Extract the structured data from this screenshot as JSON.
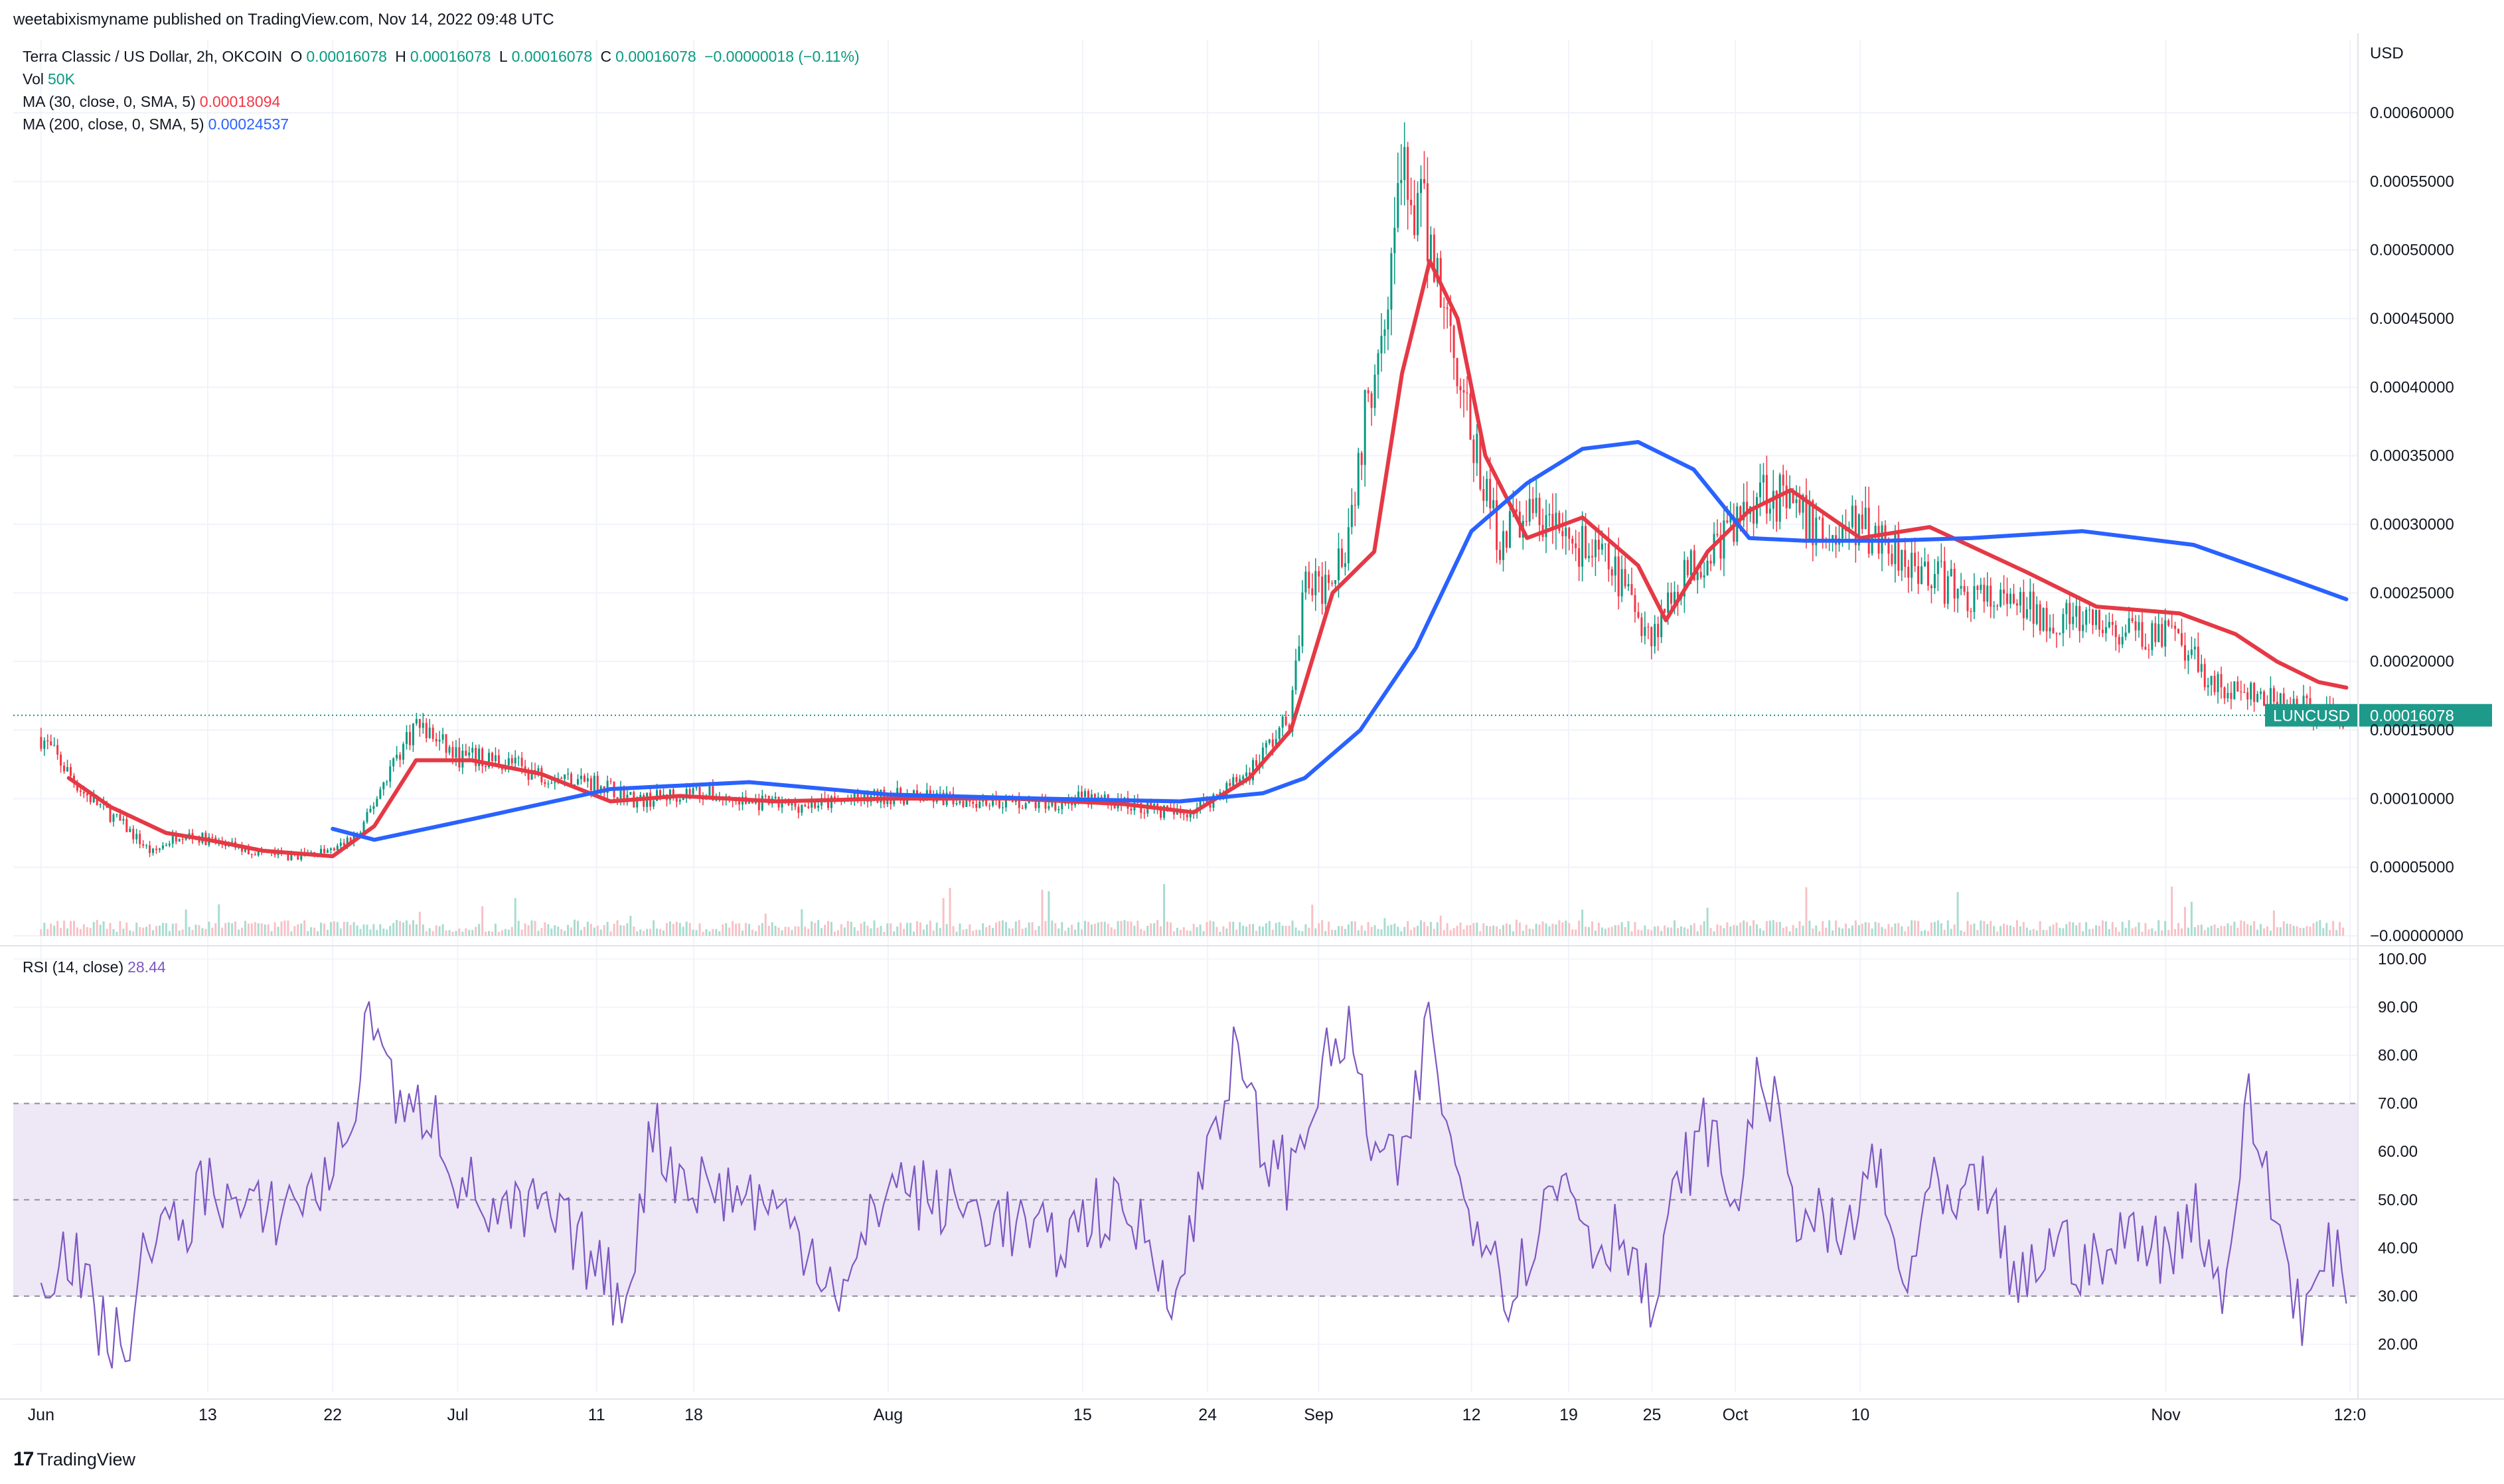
{
  "published": "weetabixismyname published on TradingView.com, Nov 14, 2022 09:48 UTC",
  "legend": {
    "symbol": "Terra Classic / US Dollar, 2h, OKCOIN",
    "o_label": "O",
    "o_value": "0.00016078",
    "h_label": "H",
    "h_value": "0.00016078",
    "l_label": "L",
    "l_value": "0.00016078",
    "c_label": "C",
    "c_value": "0.00016078",
    "change": "−0.00000018 (−0.11%)",
    "vol_label": "Vol",
    "vol_value": "50K",
    "ma30_label": "MA (30, close, 0, SMA, 5)",
    "ma30_value": "0.00018094",
    "ma200_label": "MA (200, close, 0, SMA, 5)",
    "ma200_value": "0.00024537",
    "rsi_label": "RSI (14, close)",
    "rsi_value": "28.44"
  },
  "brand": {
    "logo": "17",
    "name": "TradingView"
  },
  "colors": {
    "up": "#089981",
    "down": "#f23645",
    "ma30": "#e53945",
    "ma200": "#2962ff",
    "rsi": "#7e57c2",
    "rsi_band": "#ede7f6",
    "grid": "#f0f3fa"
  },
  "chart_data": [
    {
      "type": "line",
      "title": "Terra Classic / US Dollar, 2h, OKCOIN",
      "ylabel": "USD",
      "ylim": [
        0,
        0.0006
      ],
      "price_ticks": [
        "−0.00000000",
        "0.00005000",
        "0.00010000",
        "0.00015000",
        "0.00020000",
        "0.00025000",
        "0.00030000",
        "0.00035000",
        "0.00040000",
        "0.00045000",
        "0.00050000",
        "0.00055000",
        "0.00060000"
      ],
      "x_ticks": [
        "Jun",
        "13",
        "22",
        "Jul",
        "11",
        "18",
        "Aug",
        "15",
        "24",
        "Sep",
        "12",
        "19",
        "25",
        "Oct",
        "10",
        "Nov",
        "12:0"
      ],
      "last_price_label": "LUNCUSD",
      "last_price": "0.00016078",
      "series": [
        {
          "name": "Price (close)",
          "x": [
            "Jun 1",
            "Jun 4",
            "Jun 7",
            "Jun 9",
            "Jun 11",
            "Jun 13",
            "Jun 16",
            "Jun 19",
            "Jun 22",
            "Jun 24",
            "Jun 26",
            "Jun 28",
            "Jul 1",
            "Jul 4",
            "Jul 7",
            "Jul 11",
            "Jul 14",
            "Jul 18",
            "Jul 21",
            "Jul 25",
            "Jul 28",
            "Aug 1",
            "Aug 5",
            "Aug 9",
            "Aug 12",
            "Aug 15",
            "Aug 19",
            "Aug 22",
            "Aug 24",
            "Aug 27",
            "Aug 30",
            "Aug 31",
            "Sep 1",
            "Sep 3",
            "Sep 5",
            "Sep 7",
            "Sep 9",
            "Sep 10",
            "Sep 11",
            "Sep 12",
            "Sep 14",
            "Sep 16",
            "Sep 19",
            "Sep 22",
            "Sep 25",
            "Sep 27",
            "Sep 30",
            "Oct 1",
            "Oct 3",
            "Oct 5",
            "Oct 8",
            "Oct 10",
            "Oct 13",
            "Oct 17",
            "Oct 21",
            "Oct 25",
            "Oct 29",
            "Nov 1",
            "Nov 3",
            "Nov 5",
            "Nov 8",
            "Nov 11",
            "Nov 14"
          ],
          "values": [
            0.000145,
            0.000105,
            8e-05,
            6e-05,
            7.5e-05,
            7e-05,
            6.2e-05,
            5.8e-05,
            6.2e-05,
            7.5e-05,
            0.00012,
            0.000155,
            0.00013,
            0.000128,
            0.000118,
            0.000112,
            9.8e-05,
            0.000106,
            9.8e-05,
            9.5e-05,
            9.7e-05,
            0.000102,
            0.0001,
            9.8e-05,
            9.6e-05,
            0.0001,
            9.5e-05,
            8.8e-05,
            9.8e-05,
            0.00012,
            0.00016,
            0.00026,
            0.00025,
            0.00029,
            0.00042,
            0.00055,
            0.00051,
            0.00046,
            0.00042,
            0.00036,
            0.00029,
            0.00031,
            0.00029,
            0.00027,
            0.00022,
            0.00026,
            0.00029,
            0.0003,
            0.00033,
            0.00031,
            0.00029,
            0.0003,
            0.00028,
            0.00025,
            0.00024,
            0.00023,
            0.00022,
            0.00022,
            0.0002,
            0.00018,
            0.000172,
            0.000165,
            0.00016078
          ]
        },
        {
          "name": "MA (30, close, 0, SMA, 5)",
          "x": [
            "Jun 3",
            "Jun 6",
            "Jun 10",
            "Jun 13",
            "Jun 17",
            "Jun 22",
            "Jun 25",
            "Jun 28",
            "Jul 2",
            "Jul 7",
            "Jul 12",
            "Jul 17",
            "Jul 24",
            "Aug 1",
            "Aug 10",
            "Aug 18",
            "Aug 23",
            "Aug 27",
            "Aug 30",
            "Sep 2",
            "Sep 5",
            "Sep 7",
            "Sep 9",
            "Sep 11",
            "Sep 13",
            "Sep 16",
            "Sep 20",
            "Sep 24",
            "Sep 26",
            "Sep 29",
            "Oct 2",
            "Oct 5",
            "Oct 10",
            "Oct 15",
            "Oct 22",
            "Oct 27",
            "Nov 2",
            "Nov 6",
            "Nov 9",
            "Nov 12",
            "Nov 14"
          ],
          "values": [
            0.000115,
            9.4e-05,
            7.5e-05,
            7e-05,
            6.2e-05,
            5.8e-05,
            8e-05,
            0.000128,
            0.000128,
            0.000118,
            9.8e-05,
            0.000102,
            9.8e-05,
            0.0001,
            0.0001,
            9.6e-05,
            9e-05,
            0.000115,
            0.00015,
            0.00025,
            0.00028,
            0.00041,
            0.000492,
            0.00045,
            0.00035,
            0.00029,
            0.000305,
            0.00027,
            0.00023,
            0.00028,
            0.00031,
            0.000325,
            0.00029,
            0.000298,
            0.000265,
            0.00024,
            0.000235,
            0.00022,
            0.0002,
            0.000185,
            0.00018094
          ]
        },
        {
          "name": "MA (200, close, 0, SMA, 5)",
          "x": [
            "Jun 22",
            "Jun 25",
            "Jul 2",
            "Jul 12",
            "Jul 22",
            "Aug 1",
            "Aug 12",
            "Aug 22",
            "Aug 28",
            "Aug 31",
            "Sep 4",
            "Sep 8",
            "Sep 12",
            "Sep 16",
            "Sep 20",
            "Sep 24",
            "Sep 28",
            "Oct 2",
            "Oct 6",
            "Oct 12",
            "Oct 18",
            "Oct 26",
            "Nov 3",
            "Nov 10",
            "Nov 14"
          ],
          "values": [
            7.8e-05,
            7e-05,
            8.5e-05,
            0.000107,
            0.000112,
            0.000103,
            0.0001,
            9.8e-05,
            0.000104,
            0.000115,
            0.00015,
            0.00021,
            0.000295,
            0.00033,
            0.000355,
            0.00036,
            0.00034,
            0.00029,
            0.000288,
            0.000288,
            0.00029,
            0.000295,
            0.000285,
            0.00026,
            0.00024537
          ]
        }
      ]
    },
    {
      "type": "line",
      "title": "RSI (14, close)",
      "ylim": [
        10,
        100
      ],
      "rsi_ticks": [
        "20.00",
        "30.00",
        "40.00",
        "50.00",
        "60.00",
        "70.00",
        "80.00",
        "90.00",
        "100.00"
      ],
      "bands": {
        "upper": 70,
        "middle": 50,
        "lower": 30
      },
      "series": [
        {
          "name": "RSI",
          "x": [
            "Jun 1",
            "Jun 3",
            "Jun 5",
            "Jun 7",
            "Jun 9",
            "Jun 11",
            "Jun 13",
            "Jun 15",
            "Jun 17",
            "Jun 19",
            "Jun 21",
            "Jun 23",
            "Jun 25",
            "Jun 27",
            "Jun 29",
            "Jul 1",
            "Jul 4",
            "Jul 7",
            "Jul 10",
            "Jul 13",
            "Jul 15",
            "Jul 17",
            "Jul 20",
            "Jul 23",
            "Jul 26",
            "Jul 29",
            "Aug 1",
            "Aug 4",
            "Aug 7",
            "Aug 10",
            "Aug 13",
            "Aug 16",
            "Aug 19",
            "Aug 22",
            "Aug 24",
            "Aug 26",
            "Aug 28",
            "Aug 30",
            "Sep 1",
            "Sep 3",
            "Sep 5",
            "Sep 7",
            "Sep 9",
            "Sep 11",
            "Sep 13",
            "Sep 15",
            "Sep 17",
            "Sep 19",
            "Sep 21",
            "Sep 23",
            "Sep 25",
            "Sep 27",
            "Sep 29",
            "Oct 1",
            "Oct 3",
            "Oct 5",
            "Oct 7",
            "Oct 9",
            "Oct 11",
            "Oct 13",
            "Oct 15",
            "Oct 17",
            "Oct 19",
            "Oct 21",
            "Oct 24",
            "Oct 27",
            "Oct 30",
            "Nov 1",
            "Nov 3",
            "Nov 5",
            "Nov 7",
            "Nov 9",
            "Nov 11",
            "Nov 13",
            "Nov 14"
          ],
          "values": [
            35,
            40,
            25,
            18,
            45,
            42,
            55,
            48,
            46,
            50,
            52,
            63,
            91,
            65,
            70,
            55,
            45,
            48,
            40,
            28,
            65,
            55,
            52,
            50,
            42,
            30,
            55,
            50,
            48,
            45,
            40,
            48,
            45,
            30,
            62,
            80,
            60,
            55,
            75,
            85,
            60,
            55,
            88,
            52,
            45,
            30,
            48,
            55,
            40,
            45,
            25,
            55,
            65,
            48,
            80,
            50,
            45,
            40,
            60,
            30,
            52,
            45,
            55,
            30,
            42,
            35,
            45,
            38,
            50,
            30,
            70,
            45,
            25,
            40,
            28.44
          ]
        }
      ]
    }
  ]
}
